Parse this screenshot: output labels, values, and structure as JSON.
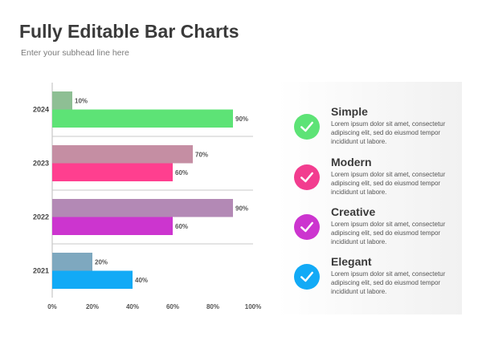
{
  "header": {
    "title": "Fully Editable Bar Charts",
    "subhead": "Enter your subhead line here"
  },
  "chart_data": {
    "type": "bar",
    "orientation": "horizontal",
    "categories": [
      "2024",
      "2023",
      "2022",
      "2021"
    ],
    "groups": [
      {
        "category": "2024",
        "values": [
          10,
          90
        ],
        "colors": [
          "#8ebf94",
          "#5de376"
        ]
      },
      {
        "category": "2023",
        "values": [
          70,
          60
        ],
        "colors": [
          "#c58ea3",
          "#ff3f8f"
        ]
      },
      {
        "category": "2022",
        "values": [
          90,
          60
        ],
        "colors": [
          "#b389b5",
          "#cc35cf"
        ]
      },
      {
        "category": "2021",
        "values": [
          20,
          40
        ],
        "colors": [
          "#7ea8bf",
          "#12aaf6"
        ]
      }
    ],
    "xlim": [
      0,
      100
    ],
    "xticks": [
      "0%",
      "20%",
      "40%",
      "60%",
      "80%",
      "100%"
    ],
    "value_suffix": "%",
    "title": "",
    "xlabel": "",
    "ylabel": "",
    "grid": false
  },
  "features": [
    {
      "title": "Simple",
      "text": "Lorem ipsum dolor sit amet, consectetur adipiscing elit, sed do eiusmod tempor incididunt ut labore.",
      "color": "#5de376",
      "icon": "check-icon"
    },
    {
      "title": "Modern",
      "text": "Lorem ipsum dolor sit amet, consectetur adipiscing elit, sed do eiusmod tempor incididunt ut labore.",
      "color": "#f23d8f",
      "icon": "check-icon"
    },
    {
      "title": "Creative",
      "text": "Lorem ipsum dolor sit amet, consectetur adipiscing elit, sed do eiusmod tempor incididunt ut labore.",
      "color": "#cc35cf",
      "icon": "check-icon"
    },
    {
      "title": "Elegant",
      "text": "Lorem ipsum dolor sit amet, consectetur adipiscing elit, sed do eiusmod tempor incididunt ut labore.",
      "color": "#12aaf6",
      "icon": "check-icon"
    }
  ]
}
